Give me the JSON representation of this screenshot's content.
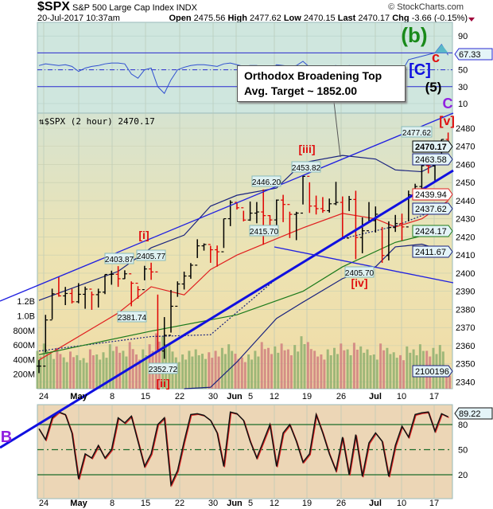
{
  "header": {
    "symbol": "$SPX",
    "name": "S&P 500 Large Cap Index",
    "exchange": "INDX",
    "watermark": "© StockCharts.com",
    "datetime": "20-Jul-2017 10:37am",
    "open_label": "Open",
    "open": "2475.56",
    "high_label": "High",
    "high": "2477.62",
    "low_label": "Low",
    "low": "2470.15",
    "last_label": "Last",
    "last": "2470.17",
    "chg_label": "Chg",
    "chg": "-3.66 (-0.15%)"
  },
  "colors": {
    "up": "#000000",
    "down": "#e00000",
    "upper_band": "#1a237e",
    "ma_red": "#e02020",
    "ma_green": "#1b7a1b",
    "trend": "#1010e0"
  },
  "chart_data": [
    {
      "type": "line",
      "panel": "rsi-top",
      "yticks": [
        90,
        50,
        30,
        10
      ],
      "ylim": [
        0,
        100
      ],
      "levels": [
        70,
        50,
        30
      ],
      "last_value_label": "67.33",
      "values": [
        55,
        57,
        56,
        55,
        56,
        54,
        48,
        52,
        54,
        55,
        57,
        58,
        58,
        57,
        45,
        40,
        50,
        52,
        30,
        22,
        38,
        50,
        53,
        55,
        56,
        56,
        55,
        54,
        57,
        58,
        56,
        54,
        55,
        55,
        53,
        50,
        56,
        55,
        54,
        55,
        60,
        53,
        52,
        52,
        54,
        55,
        45,
        55,
        44,
        46,
        50,
        52,
        40,
        48,
        50,
        48,
        62,
        64,
        66,
        68,
        70,
        80,
        67.33
      ],
      "annotations": [
        "(b)",
        "c",
        "[C]",
        "(5)",
        "C",
        "[v]"
      ]
    },
    {
      "type": "ohlc",
      "panel": "price",
      "title": "$SPX (2 hour) 2470.17",
      "x_ticks": [
        "24",
        "May",
        "8",
        "15",
        "22",
        "30",
        "Jun",
        "5",
        "12",
        "19",
        "26",
        "Jul",
        "10",
        "17"
      ],
      "yticks": [
        2480,
        2470,
        2460,
        2450,
        2440,
        2430,
        2420,
        2410,
        2400,
        2390,
        2380,
        2370,
        2360,
        2350,
        2340
      ],
      "ylim": [
        2336,
        2487
      ],
      "close": [
        2348.69,
        2374.15,
        2388.61,
        2387.45,
        2388.77,
        2384.2,
        2388.33,
        2391.17,
        2388.13,
        2389.52,
        2399.29,
        2399.38,
        2396.92,
        2399.63,
        2394.44,
        2390.9,
        2402.32,
        2400.67,
        2357.03,
        2365.72,
        2381.73,
        2394.02,
        2398.42,
        2404.39,
        2415.07,
        2415.82,
        2412.91,
        2411.8,
        2430.06,
        2439.07,
        2436.1,
        2429.33,
        2433.14,
        2433.79,
        2431.77,
        2429.39,
        2440.35,
        2437.92,
        2432.46,
        2433.15,
        2453.46,
        2437.03,
        2435.61,
        2434.5,
        2438.3,
        2439.07,
        2419.38,
        2440.69,
        2419.7,
        2423.41,
        2429.01,
        2432.54,
        2409.75,
        2425.18,
        2427.43,
        2425.53,
        2443.25,
        2447.83,
        2459.27,
        2459.14,
        2460.61,
        2473.83,
        2470.17
      ],
      "high": [
        2352,
        2376.98,
        2391.43,
        2398.16,
        2392.4,
        2391.36,
        2394.49,
        2392.56,
        2389.82,
        2391.43,
        2399.29,
        2401.36,
        2403.87,
        2401.58,
        2395.46,
        2392.79,
        2404.05,
        2405.77,
        2388.17,
        2375.74,
        2390.73,
        2395.46,
        2400.85,
        2405.58,
        2418.71,
        2416.41,
        2415.1,
        2415.26,
        2430.06,
        2440.23,
        2439.04,
        2434.45,
        2439.55,
        2439.28,
        2446.2,
        2432.03,
        2440.64,
        2443.24,
        2433.95,
        2433.89,
        2453.82,
        2450.17,
        2442.81,
        2441.99,
        2441.18,
        2450.42,
        2442.35,
        2442.63,
        2445.49,
        2430.78,
        2439.26,
        2436.82,
        2425.5,
        2428.62,
        2432.15,
        2432.85,
        2445.6,
        2449.36,
        2463.54,
        2462.61,
        2460.92,
        2473.91,
        2477.62
      ],
      "low": [
        2344.8,
        2356.2,
        2374.52,
        2387.0,
        2382.36,
        2383.27,
        2383.38,
        2380.36,
        2379.75,
        2381.02,
        2388.42,
        2393.62,
        2392.44,
        2396.78,
        2381.74,
        2385.89,
        2396.05,
        2396.31,
        2356.52,
        2352.72,
        2367.17,
        2386.92,
        2390.97,
        2396.92,
        2408.35,
        2412.44,
        2405.7,
        2403.59,
        2413.91,
        2425.97,
        2435.13,
        2428.6,
        2428.86,
        2427.55,
        2415.7,
        2422.18,
        2426.35,
        2428.17,
        2419.38,
        2418.21,
        2437.92,
        2433.25,
        2432.39,
        2433.34,
        2433.41,
        2437.53,
        2419.38,
        2434.28,
        2407.7,
        2410.99,
        2428.11,
        2422.41,
        2405.7,
        2407.04,
        2422.76,
        2418.0,
        2428.69,
        2441.42,
        2446.32,
        2455.11,
        2451.17,
        2464.34,
        2467.95
      ],
      "overlays": [
        {
          "name": "upper-band",
          "color": "#1a237e",
          "style": "solid",
          "points": [
            [
              0,
              2385
            ],
            [
              12,
              2401
            ],
            [
              17,
              2414
            ],
            [
              22,
              2421
            ],
            [
              26,
              2437
            ],
            [
              30,
              2443
            ],
            [
              36,
              2447
            ],
            [
              40,
              2461
            ],
            [
              46,
              2465
            ],
            [
              51,
              2463
            ],
            [
              54,
              2457
            ],
            [
              58,
              2456
            ],
            [
              62,
              2463.58
            ]
          ]
        },
        {
          "name": "lower-band",
          "color": "#1a237e",
          "style": "solid",
          "points": [
            [
              22,
              2335
            ],
            [
              26,
              2337
            ],
            [
              30,
              2351
            ],
            [
              36,
              2375
            ],
            [
              40,
              2384
            ],
            [
              46,
              2397
            ],
            [
              51,
              2403.5
            ],
            [
              54,
              2414.5
            ],
            [
              58,
              2416
            ],
            [
              62,
              2411.67
            ]
          ]
        },
        {
          "name": "ma-red",
          "color": "#e02020",
          "style": "solid",
          "points": [
            [
              0,
              2352
            ],
            [
              12,
              2378
            ],
            [
              17,
              2392.5
            ],
            [
              22,
              2388
            ],
            [
              26,
              2402
            ],
            [
              30,
              2410
            ],
            [
              36,
              2419
            ],
            [
              40,
              2425
            ],
            [
              46,
              2433
            ],
            [
              51,
              2430
            ],
            [
              54,
              2425.5
            ],
            [
              58,
              2430
            ],
            [
              62,
              2439.94
            ]
          ]
        },
        {
          "name": "ma-dotted-blue",
          "color": "#1a237e",
          "style": "dotted",
          "points": [
            [
              0,
              2357
            ],
            [
              17,
              2365
            ],
            [
              26,
              2366
            ],
            [
              36,
              2397
            ],
            [
              46,
              2419
            ],
            [
              54,
              2426
            ],
            [
              62,
              2437.62
            ]
          ]
        },
        {
          "name": "ma-green",
          "color": "#1b7a1b",
          "style": "solid",
          "points": [
            [
              0,
              2355
            ],
            [
              17,
              2368
            ],
            [
              30,
              2377
            ],
            [
              40,
              2390
            ],
            [
              46,
              2403.5
            ],
            [
              54,
              2417
            ],
            [
              62,
              2424.17
            ]
          ]
        }
      ],
      "value_tags": [
        {
          "text": "2477.62",
          "color": "#000"
        },
        {
          "text": "2470.17",
          "color": "#000",
          "bold": true
        },
        {
          "text": "2463.58",
          "color": "#1a237e"
        },
        {
          "text": "2439.94",
          "color": "#e02020"
        },
        {
          "text": "2437.62",
          "color": "#1a237e"
        },
        {
          "text": "2424.17",
          "color": "#1b7a1b"
        },
        {
          "text": "2411.67",
          "color": "#1a237e"
        },
        {
          "text": "2100196",
          "color": "#1a237e"
        }
      ],
      "price_callouts": [
        "2403.87",
        "2405.77",
        "2381.74",
        "2352.72",
        "2446.20",
        "2453.82",
        "2415.70",
        "2405.70"
      ],
      "wave_labels": [
        "[i]",
        "[ii]",
        "[iii]",
        "[iv]",
        "B"
      ],
      "annotation_box": {
        "line1": "Orthodox Broadening Top",
        "line2": "Avg. Target ~  1852.00"
      },
      "volume": {
        "yticks": [
          "1.2B",
          "1.0B",
          "800M",
          "600M",
          "400M",
          "200M"
        ],
        "values_millions": [
          520,
          620,
          480,
          560,
          430,
          510,
          460,
          420,
          540,
          470,
          500,
          610,
          580,
          520,
          640,
          470,
          540,
          610,
          760,
          720,
          600,
          430,
          470,
          520,
          540,
          480,
          500,
          520,
          560,
          610,
          480,
          430,
          470,
          520,
          640,
          560,
          580,
          620,
          540,
          600,
          720,
          640,
          520,
          470,
          540,
          560,
          620,
          540,
          630,
          580,
          540,
          470,
          620,
          560,
          500,
          460,
          580,
          540,
          610,
          520,
          560,
          600,
          210
        ]
      }
    },
    {
      "type": "line",
      "panel": "oscillator-bottom",
      "yticks": [
        80,
        50,
        20
      ],
      "ylim": [
        0,
        100
      ],
      "levels": [
        80,
        50,
        20
      ],
      "last_value_label": "89.22",
      "x_ticks": [
        "24",
        "May",
        "8",
        "15",
        "22",
        "30",
        "Jun",
        "5",
        "12",
        "19",
        "26",
        "Jul",
        "10",
        "17"
      ],
      "values": [
        75,
        62,
        88,
        95,
        92,
        70,
        15,
        45,
        40,
        55,
        40,
        50,
        88,
        82,
        90,
        60,
        30,
        45,
        80,
        88,
        8,
        25,
        60,
        92,
        93,
        91,
        85,
        70,
        30,
        95,
        93,
        85,
        60,
        40,
        60,
        80,
        30,
        70,
        80,
        60,
        35,
        45,
        92,
        70,
        45,
        25,
        65,
        20,
        68,
        18,
        58,
        70,
        60,
        18,
        55,
        78,
        65,
        92,
        94,
        95,
        72,
        93,
        89.22
      ]
    }
  ]
}
